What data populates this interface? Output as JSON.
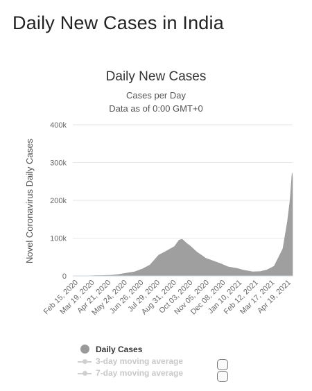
{
  "page": {
    "heading": "Daily New Cases in India"
  },
  "chart_data": {
    "type": "area",
    "title": "Daily New Cases",
    "subtitle": [
      "Cases per Day",
      "Data as of 0:00 GMT+0"
    ],
    "xlabel": "",
    "ylabel": "Novel Coronavirus Daily Cases",
    "ylim": [
      0,
      400000
    ],
    "yticks": [
      {
        "value": 0,
        "label": "0"
      },
      {
        "value": 100000,
        "label": "100k"
      },
      {
        "value": 200000,
        "label": "200k"
      },
      {
        "value": 300000,
        "label": "300k"
      },
      {
        "value": 400000,
        "label": "400k"
      }
    ],
    "xrange": [
      "2020-02-15",
      "2021-04-20"
    ],
    "xticks": [
      "Feb 15, 2020",
      "Mar 19, 2020",
      "Apr 21, 2020",
      "May 24, 2020",
      "Jun 26, 2020",
      "Jul 29, 2020",
      "Aug 31, 2020",
      "Oct 03, 2020",
      "Nov 05, 2020",
      "Dec 08, 2020",
      "Jan 10, 2021",
      "Feb 12, 2021",
      "Mar 17, 2021",
      "Apr 19, 2021"
    ],
    "grid": true,
    "legend_placement": "bottom-left",
    "series": [
      {
        "name": "Daily Cases",
        "color": "#9a9a9a",
        "points": [
          [
            "2020-02-15",
            0
          ],
          [
            "2020-03-15",
            100
          ],
          [
            "2020-04-01",
            1000
          ],
          [
            "2020-04-15",
            1200
          ],
          [
            "2020-05-01",
            2000
          ],
          [
            "2020-05-15",
            4000
          ],
          [
            "2020-06-01",
            8000
          ],
          [
            "2020-06-15",
            11000
          ],
          [
            "2020-07-01",
            19000
          ],
          [
            "2020-07-15",
            29000
          ],
          [
            "2020-08-01",
            55000
          ],
          [
            "2020-08-15",
            65000
          ],
          [
            "2020-09-01",
            78000
          ],
          [
            "2020-09-10",
            95000
          ],
          [
            "2020-09-16",
            97000
          ],
          [
            "2020-09-25",
            86000
          ],
          [
            "2020-10-01",
            80000
          ],
          [
            "2020-10-15",
            63000
          ],
          [
            "2020-11-01",
            47000
          ],
          [
            "2020-11-15",
            40000
          ],
          [
            "2020-12-01",
            32000
          ],
          [
            "2020-12-15",
            24000
          ],
          [
            "2021-01-01",
            20000
          ],
          [
            "2021-01-15",
            15000
          ],
          [
            "2021-02-01",
            11000
          ],
          [
            "2021-02-15",
            11500
          ],
          [
            "2021-03-01",
            16000
          ],
          [
            "2021-03-15",
            26000
          ],
          [
            "2021-04-01",
            72000
          ],
          [
            "2021-04-10",
            145000
          ],
          [
            "2021-04-15",
            200000
          ],
          [
            "2021-04-19",
            273000
          ],
          [
            "2021-04-20",
            259000
          ]
        ]
      }
    ],
    "legend": [
      {
        "name": "Daily Cases",
        "active": true
      },
      {
        "name": "3-day moving average",
        "active": false
      },
      {
        "name": "7-day moving average",
        "active": false
      }
    ]
  }
}
